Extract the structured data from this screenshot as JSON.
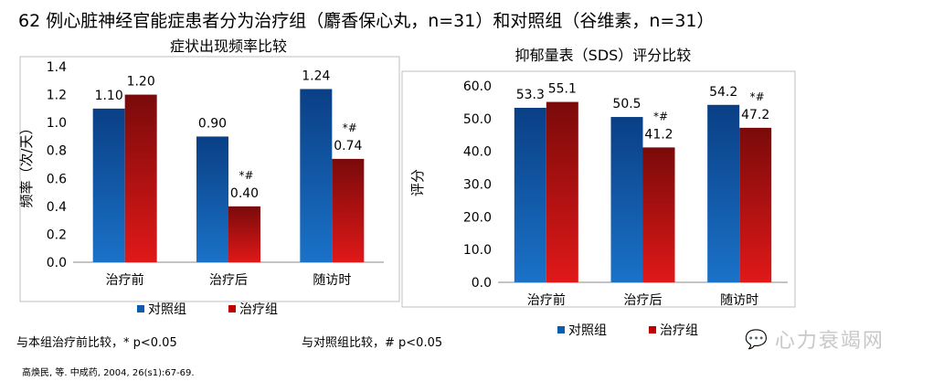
{
  "title": "62 例心脏神经官能症患者分为治疗组（麝香保心丸，n=31）和对照组（谷维素，n=31）",
  "footnote_1": "与本组治疗前比较，* p<0.05",
  "footnote_2": "与对照组比较，# p<0.05",
  "reference": "高焕民, 等. 中成药, 2004, 26(s1):67-69.",
  "watermark": "心力衰竭网",
  "colors": {
    "control": "#0b5cad",
    "treatment": "#c00000"
  },
  "chart_data": [
    {
      "type": "bar",
      "title": "症状出现频率比较",
      "ylabel": "频率（次/天）",
      "xlabel": "",
      "categories": [
        "治疗前",
        "治疗后",
        "随访时"
      ],
      "ylim": [
        0,
        1.4
      ],
      "yticks": [
        "0.0",
        "0.2",
        "0.4",
        "0.6",
        "0.8",
        "1.0",
        "1.2",
        "1.4"
      ],
      "tick_step": 0.2,
      "series": [
        {
          "name": "对照组",
          "values": [
            1.1,
            0.9,
            1.24
          ],
          "labels": [
            "1.10",
            "0.90",
            "1.24"
          ],
          "marks": [
            "",
            "",
            ""
          ]
        },
        {
          "name": "治疗组",
          "values": [
            1.2,
            0.4,
            0.74
          ],
          "labels": [
            "1.20",
            "0.40",
            "0.74"
          ],
          "marks": [
            "",
            "*#",
            "*#"
          ]
        }
      ],
      "legend": "bottom"
    },
    {
      "type": "bar",
      "title": "抑郁量表（SDS）评分比较",
      "ylabel": "评分",
      "xlabel": "",
      "categories": [
        "治疗前",
        "治疗后",
        "随访时"
      ],
      "ylim": [
        0,
        60
      ],
      "yticks": [
        "0.0",
        "10.0",
        "20.0",
        "30.0",
        "40.0",
        "50.0",
        "60.0"
      ],
      "tick_step": 10,
      "series": [
        {
          "name": "对照组",
          "values": [
            53.3,
            50.5,
            54.2
          ],
          "labels": [
            "53.3",
            "50.5",
            "54.2"
          ],
          "marks": [
            "",
            "",
            ""
          ]
        },
        {
          "name": "治疗组",
          "values": [
            55.1,
            41.2,
            47.2
          ],
          "labels": [
            "55.1",
            "41.2",
            "47.2"
          ],
          "marks": [
            "",
            "*#",
            "*#"
          ]
        }
      ],
      "legend": "bottom"
    }
  ]
}
